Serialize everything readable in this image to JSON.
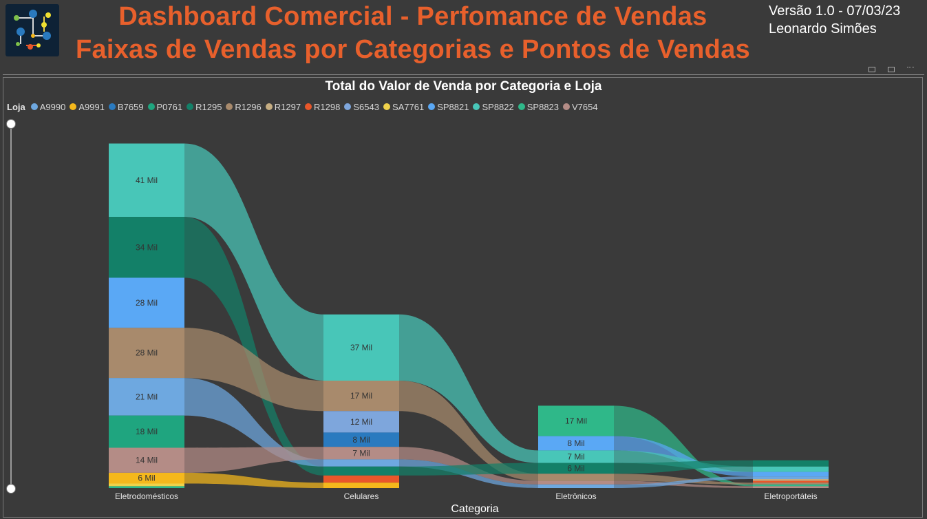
{
  "header": {
    "title_line1": "Dashboard Comercial - Perfomance de Vendas",
    "title_line2": "Faixas de Vendas por Categorias e Pontos de Vendas",
    "version": "Versão 1.0 - 07/03/23",
    "author": "Leonardo Simões"
  },
  "legend": {
    "title": "Loja",
    "items": [
      {
        "label": "A9990",
        "color": "#6ea8e0"
      },
      {
        "label": "A9991",
        "color": "#f5b81c"
      },
      {
        "label": "B7659",
        "color": "#2a7abf"
      },
      {
        "label": "P0761",
        "color": "#1fa57f"
      },
      {
        "label": "R1295",
        "color": "#138068"
      },
      {
        "label": "R1296",
        "color": "#a88a6c"
      },
      {
        "label": "R1297",
        "color": "#c5ad82"
      },
      {
        "label": "R1298",
        "color": "#e9572a"
      },
      {
        "label": "S6543",
        "color": "#7ea6dc"
      },
      {
        "label": "SA7761",
        "color": "#f0d24b"
      },
      {
        "label": "SP8821",
        "color": "#5aa8f5"
      },
      {
        "label": "SP8822",
        "color": "#48c6b8"
      },
      {
        "label": "SP8823",
        "color": "#2fb889"
      },
      {
        "label": "V7654",
        "color": "#b48c86"
      }
    ]
  },
  "chart_data": {
    "type": "sankey",
    "title": "Total do Valor de Venda por Categoria e Loja",
    "xlabel": "Categoria",
    "categories": [
      "Eletrodomésticos",
      "Celulares",
      "Eletrônicos",
      "Eletroportáteis"
    ],
    "unit_label": "Mil",
    "segments": {
      "Eletrodomésticos": [
        {
          "store": "SP8822",
          "value": 41
        },
        {
          "store": "R1295",
          "value": 34
        },
        {
          "store": "SP8821",
          "value": 28
        },
        {
          "store": "R1296",
          "value": 28
        },
        {
          "store": "A9990",
          "value": 21
        },
        {
          "store": "P0761",
          "value": 18
        },
        {
          "store": "V7654",
          "value": 14
        },
        {
          "store": "A9991",
          "value": 6
        },
        {
          "store": "SA7761",
          "value": 1.5
        },
        {
          "store": "SP8823",
          "value": 1
        }
      ],
      "Celulares": [
        {
          "store": "SP8822",
          "value": 37
        },
        {
          "store": "R1296",
          "value": 17
        },
        {
          "store": "S6543",
          "value": 12
        },
        {
          "store": "B7659",
          "value": 8
        },
        {
          "store": "V7654",
          "value": 7
        },
        {
          "store": "A9990",
          "value": 4
        },
        {
          "store": "R1295",
          "value": 5
        },
        {
          "store": "R1298",
          "value": 4
        },
        {
          "store": "A9991",
          "value": 3
        }
      ],
      "Eletrônicos": [
        {
          "store": "SP8823",
          "value": 17
        },
        {
          "store": "SP8821",
          "value": 8
        },
        {
          "store": "SP8822",
          "value": 7
        },
        {
          "store": "R1295",
          "value": 6
        },
        {
          "store": "R1296",
          "value": 4
        },
        {
          "store": "V7654",
          "value": 2
        },
        {
          "store": "A9990",
          "value": 2
        }
      ],
      "Eletroportáteis": [
        {
          "store": "R1295",
          "value": 3.5
        },
        {
          "store": "SP8822",
          "value": 3
        },
        {
          "store": "SP8821",
          "value": 2.5
        },
        {
          "store": "A9990",
          "value": 1.5
        },
        {
          "store": "R1297",
          "value": 1
        },
        {
          "store": "R1298",
          "value": 1
        },
        {
          "store": "R1296",
          "value": 1
        },
        {
          "store": "SP8823",
          "value": 1
        },
        {
          "store": "V7654",
          "value": 1
        }
      ]
    }
  }
}
